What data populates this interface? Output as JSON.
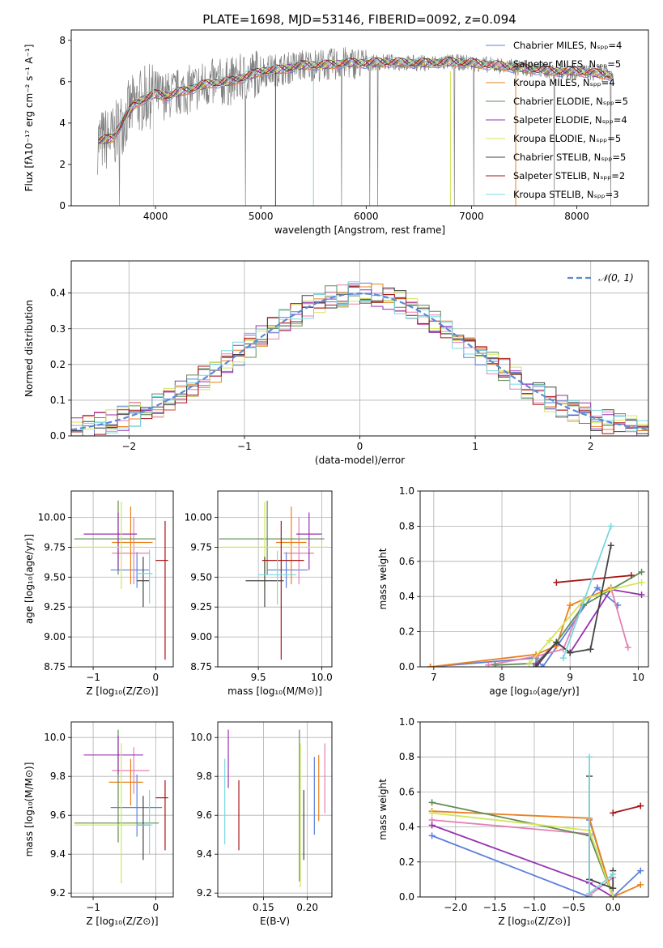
{
  "figure_title": "PLATE=1698, MJD=53146, FIBERID=0092, z=0.094",
  "colors": {
    "chabrier_miles": "#5b7fdc",
    "salpeter_miles": "#e57fb4",
    "kroupa_miles": "#e9801f",
    "chabrier_elodie": "#5f8c56",
    "salpeter_elodie": "#9630b2",
    "kroupa_elodie": "#d2e65a",
    "chabrier_stelib": "#444444",
    "salpeter_stelib": "#a81616",
    "kroupa_stelib": "#78d8de",
    "data": "#808080",
    "normal": "#5b8ad6",
    "grid": "#b0b0b0"
  },
  "chart_data": [
    {
      "id": "spectrum",
      "type": "line",
      "xlabel": "wavelength [Angstrom, rest frame]",
      "ylabel": "Flux [fλ10⁻¹⁷ erg cm⁻² s⁻¹ A⁻¹]",
      "xlim": [
        3200,
        8680
      ],
      "ylim": [
        0,
        8.5
      ],
      "xticks": [
        "4000",
        "5000",
        "6000",
        "7000",
        "8000"
      ],
      "yticks": [
        "0",
        "2",
        "4",
        "6",
        "8"
      ],
      "legend": [
        "Chabrier MILES, Nₛₚₚ=4",
        "Salpeter MILES, Nₛₚₚ=5",
        "Kroupa MILES, Nₛₚₚ=4",
        "Chabrier ELODIE, Nₛₚₚ=5",
        "Salpeter ELODIE, Nₛₚₚ=4",
        "Kroupa ELODIE, Nₛₚₚ=5",
        "Chabrier STELIB, Nₛₚₚ=5",
        "Salpeter STELIB, Nₛₚₚ=2",
        "Kroupa STELIB, Nₛₚₚ=3"
      ],
      "legend_loc": "upper right",
      "continuum": {
        "x": [
          3450,
          3600,
          3700,
          3800,
          3900,
          4000,
          4100,
          4300,
          4500,
          4700,
          4900,
          5000,
          5200,
          5400,
          5600,
          5800,
          6000,
          6200,
          6400,
          6600,
          6800,
          7000,
          7200,
          7400,
          7600,
          7800,
          8000,
          8200,
          8350
        ],
        "y": [
          3.1,
          3.3,
          4.2,
          4.9,
          5.2,
          5.4,
          5.3,
          5.6,
          5.9,
          6.0,
          6.3,
          6.5,
          6.6,
          6.8,
          6.8,
          6.9,
          6.9,
          6.95,
          6.9,
          6.9,
          6.95,
          6.9,
          6.8,
          6.7,
          6.6,
          6.5,
          6.5,
          6.4,
          6.3
        ]
      },
      "grid": false
    },
    {
      "id": "residuals",
      "type": "bar",
      "xlabel": "(data-model)/error",
      "ylabel": "Normed distribution",
      "xlim": [
        -2.5,
        2.5
      ],
      "ylim": [
        0,
        0.49
      ],
      "xticks": [
        "−2",
        "−1",
        "0",
        "1",
        "2"
      ],
      "yticks": [
        "0.0",
        "0.1",
        "0.2",
        "0.3",
        "0.4"
      ],
      "legend": [
        "𝒩(0, 1)"
      ],
      "legend_loc": "upper right",
      "grid": true,
      "bin_width": 0.1
    },
    {
      "id": "age-vs-z",
      "type": "scatter",
      "xlabel": "Z [log₁₀(Z/Z⊙)]",
      "ylabel": "age  [log₁₀(age/yr)]",
      "xlim": [
        -1.35,
        0.28
      ],
      "ylim": [
        8.75,
        10.22
      ],
      "xticks": [
        "−1",
        "0"
      ],
      "yticks": [
        "8.75",
        "9.00",
        "9.25",
        "9.50",
        "9.75",
        "10.00"
      ],
      "grid": true,
      "points": [
        {
          "series": "chabrier_miles",
          "x": -0.3,
          "xerr": [
            0.42,
            0.2
          ],
          "y": 9.56,
          "yerr": [
            0.15,
            0.15
          ]
        },
        {
          "series": "salpeter_miles",
          "x": -0.35,
          "xerr": [
            0.35,
            0.25
          ],
          "y": 9.7,
          "yerr": [
            0.26,
            0.3
          ]
        },
        {
          "series": "kroupa_miles",
          "x": -0.4,
          "xerr": [
            0.3,
            0.35
          ],
          "y": 9.79,
          "yerr": [
            0.35,
            0.3
          ]
        },
        {
          "series": "chabrier_elodie",
          "x": -0.6,
          "xerr": [
            0.7,
            0.6
          ],
          "y": 9.82,
          "yerr": [
            0.3,
            0.32
          ]
        },
        {
          "series": "salpeter_elodie",
          "x": -0.6,
          "xerr": [
            0.55,
            0.3
          ],
          "y": 9.86,
          "yerr": [
            0.3,
            0.18
          ]
        },
        {
          "series": "kroupa_elodie",
          "x": -0.55,
          "xerr": [
            0.75,
            0.35
          ],
          "y": 9.75,
          "yerr": [
            0.35,
            0.38
          ]
        },
        {
          "series": "chabrier_stelib",
          "x": -0.2,
          "xerr": [
            0.1,
            0.1
          ],
          "y": 9.47,
          "yerr": [
            0.22,
            0.2
          ]
        },
        {
          "series": "salpeter_stelib",
          "x": 0.15,
          "xerr": [
            0.15,
            0.05
          ],
          "y": 9.64,
          "yerr": [
            0.83,
            0.33
          ]
        },
        {
          "series": "kroupa_stelib",
          "x": -0.1,
          "xerr": [
            0.2,
            0.05
          ],
          "y": 9.53,
          "yerr": [
            0.25,
            0.2
          ]
        }
      ]
    },
    {
      "id": "age-vs-mass",
      "type": "scatter",
      "xlabel": "mass [log₁₀(M/M⊙)]",
      "ylabel": "",
      "xlim": [
        9.18,
        10.08
      ],
      "ylim": [
        8.75,
        10.22
      ],
      "xticks": [
        "9.5",
        "10.0"
      ],
      "yticks": [
        "8.75",
        "9.00",
        "9.25",
        "9.50",
        "9.75",
        "10.00"
      ],
      "grid": true,
      "points": [
        {
          "series": "chabrier_miles",
          "x": 9.72,
          "xerr": [
            0.15,
            0.17
          ],
          "y": 9.56,
          "yerr": [
            0.15,
            0.15
          ]
        },
        {
          "series": "salpeter_miles",
          "x": 9.82,
          "xerr": [
            0.12,
            0.12
          ],
          "y": 9.7,
          "yerr": [
            0.26,
            0.3
          ]
        },
        {
          "series": "kroupa_miles",
          "x": 9.76,
          "xerr": [
            0.12,
            0.12
          ],
          "y": 9.79,
          "yerr": [
            0.35,
            0.3
          ]
        },
        {
          "series": "chabrier_elodie",
          "x": 9.57,
          "xerr": [
            0.38,
            0.45
          ],
          "y": 9.82,
          "yerr": [
            0.3,
            0.32
          ]
        },
        {
          "series": "salpeter_elodie",
          "x": 9.9,
          "xerr": [
            0.1,
            0.1
          ],
          "y": 9.86,
          "yerr": [
            0.3,
            0.18
          ]
        },
        {
          "series": "kroupa_elodie",
          "x": 9.55,
          "xerr": [
            0.35,
            0.5
          ],
          "y": 9.75,
          "yerr": [
            0.35,
            0.38
          ]
        },
        {
          "series": "chabrier_stelib",
          "x": 9.55,
          "xerr": [
            0.15,
            0.15
          ],
          "y": 9.47,
          "yerr": [
            0.22,
            0.2
          ]
        },
        {
          "series": "salpeter_stelib",
          "x": 9.68,
          "xerr": [
            0.15,
            0.18
          ],
          "y": 9.64,
          "yerr": [
            0.83,
            0.33
          ]
        },
        {
          "series": "kroupa_stelib",
          "x": 9.65,
          "xerr": [
            0.15,
            0.15
          ],
          "y": 9.52,
          "yerr": [
            0.25,
            0.2
          ]
        }
      ]
    },
    {
      "id": "weight-vs-age",
      "type": "line",
      "xlabel": "age  [log₁₀(age/yr)]",
      "ylabel": "mass weight",
      "xlim": [
        6.8,
        10.15
      ],
      "ylim": [
        0,
        1.0
      ],
      "xticks": [
        "7",
        "8",
        "9",
        "10"
      ],
      "yticks": [
        "0.0",
        "0.2",
        "0.4",
        "0.6",
        "0.8",
        "1.0"
      ],
      "grid": true,
      "series": [
        {
          "key": "chabrier_miles",
          "x": [
            6.95,
            8.5,
            8.6,
            9.4,
            9.7
          ],
          "y": [
            0.0,
            0.05,
            0.0,
            0.45,
            0.35
          ]
        },
        {
          "key": "salpeter_miles",
          "x": [
            7.8,
            8.5,
            8.9,
            9.2,
            9.6,
            9.85
          ],
          "y": [
            0.01,
            0.06,
            0.1,
            0.38,
            0.45,
            0.11
          ]
        },
        {
          "key": "kroupa_miles",
          "x": [
            6.95,
            8.5,
            8.8,
            9.0,
            9.6
          ],
          "y": [
            0.0,
            0.07,
            0.12,
            0.35,
            0.45
          ]
        },
        {
          "key": "chabrier_elodie",
          "x": [
            7.9,
            8.5,
            8.8,
            9.2,
            10.05
          ],
          "y": [
            0.01,
            0.02,
            0.14,
            0.35,
            0.54
          ]
        },
        {
          "key": "salpeter_elodie",
          "x": [
            8.5,
            8.8,
            9.0,
            9.6,
            10.05
          ],
          "y": [
            0.01,
            0.14,
            0.08,
            0.44,
            0.41
          ]
        },
        {
          "key": "kroupa_elodie",
          "x": [
            8.4,
            8.7,
            9.2,
            9.6,
            10.05
          ],
          "y": [
            0.02,
            0.15,
            0.38,
            0.44,
            0.48
          ]
        },
        {
          "key": "chabrier_stelib",
          "x": [
            8.5,
            8.8,
            9.0,
            9.3,
            9.6
          ],
          "y": [
            0.0,
            0.14,
            0.08,
            0.1,
            0.69
          ]
        },
        {
          "key": "salpeter_stelib",
          "x": [
            8.8,
            9.9
          ],
          "y": [
            0.48,
            0.52
          ]
        },
        {
          "key": "kroupa_stelib",
          "x": [
            8.9,
            9.6
          ],
          "y": [
            0.05,
            0.8
          ]
        }
      ]
    },
    {
      "id": "mass-vs-z",
      "type": "scatter",
      "xlabel": "Z [log₁₀(Z/Z⊙)]",
      "ylabel": "mass [log₁₀(M/M⊙)]",
      "xlim": [
        -1.35,
        0.28
      ],
      "ylim": [
        9.18,
        10.08
      ],
      "xticks": [
        "−1",
        "0"
      ],
      "yticks": [
        "9.2",
        "9.4",
        "9.6",
        "9.8",
        "10.0"
      ],
      "grid": true,
      "points": [
        {
          "series": "chabrier_miles",
          "x": -0.3,
          "xerr": [
            0.42,
            0.4
          ],
          "y": 9.64,
          "yerr": [
            0.15,
            0.17
          ]
        },
        {
          "series": "salpeter_miles",
          "x": -0.35,
          "xerr": [
            0.35,
            0.25
          ],
          "y": 9.83,
          "yerr": [
            0.12,
            0.12
          ]
        },
        {
          "series": "kroupa_miles",
          "x": -0.4,
          "xerr": [
            0.35,
            0.2
          ],
          "y": 9.77,
          "yerr": [
            0.12,
            0.12
          ]
        },
        {
          "series": "chabrier_elodie",
          "x": -0.6,
          "xerr": [
            0.7,
            0.65
          ],
          "y": 9.56,
          "yerr": [
            0.1,
            0.48
          ]
        },
        {
          "series": "salpeter_elodie",
          "x": -0.6,
          "xerr": [
            0.55,
            0.4
          ],
          "y": 9.91,
          "yerr": [
            0.1,
            0.1
          ]
        },
        {
          "series": "kroupa_elodie",
          "x": -0.55,
          "xerr": [
            0.75,
            0.35
          ],
          "y": 9.55,
          "yerr": [
            0.3,
            0.42
          ]
        },
        {
          "series": "chabrier_stelib",
          "x": -0.2,
          "xerr": [
            0.1,
            0.1
          ],
          "y": 9.55,
          "yerr": [
            0.18,
            0.15
          ]
        },
        {
          "series": "salpeter_stelib",
          "x": 0.15,
          "xerr": [
            0.15,
            0.05
          ],
          "y": 9.69,
          "yerr": [
            0.27,
            0.09
          ]
        },
        {
          "series": "kroupa_stelib",
          "x": -0.1,
          "xerr": [
            0.2,
            0.05
          ],
          "y": 9.55,
          "yerr": [
            0.15,
            0.18
          ]
        }
      ]
    },
    {
      "id": "mass-vs-ebv",
      "type": "scatter",
      "xlabel": "E(B-V)",
      "ylabel": "",
      "xlim": [
        0.098,
        0.228
      ],
      "ylim": [
        9.18,
        10.08
      ],
      "xticks": [
        "0.15",
        "0.20"
      ],
      "yticks": [
        "9.2",
        "9.4",
        "9.6",
        "9.8",
        "10.0"
      ],
      "grid": true,
      "points": [
        {
          "series": "kroupa_stelib",
          "x": 0.106,
          "y": 9.67,
          "yerr": [
            0.22,
            0.22
          ]
        },
        {
          "series": "salpeter_elodie",
          "x": 0.11,
          "y": 9.89,
          "yerr": [
            0.15,
            0.15
          ]
        },
        {
          "series": "salpeter_stelib",
          "x": 0.122,
          "y": 9.6,
          "yerr": [
            0.18,
            0.18
          ]
        },
        {
          "series": "chabrier_elodie",
          "x": 0.191,
          "y": 9.65,
          "yerr": [
            0.39,
            0.39
          ]
        },
        {
          "series": "kroupa_elodie",
          "x": 0.192,
          "y": 9.6,
          "yerr": [
            0.37,
            0.37
          ]
        },
        {
          "series": "chabrier_stelib",
          "x": 0.196,
          "y": 9.55,
          "yerr": [
            0.18,
            0.18
          ]
        },
        {
          "series": "chabrier_miles",
          "x": 0.208,
          "y": 9.7,
          "yerr": [
            0.2,
            0.2
          ]
        },
        {
          "series": "kroupa_miles",
          "x": 0.213,
          "y": 9.74,
          "yerr": [
            0.17,
            0.17
          ]
        },
        {
          "series": "salpeter_miles",
          "x": 0.22,
          "y": 9.79,
          "yerr": [
            0.18,
            0.18
          ]
        }
      ]
    },
    {
      "id": "weight-vs-z",
      "type": "line",
      "xlabel": "Z [log₁₀(Z/Z⊙)]",
      "ylabel": "mass weight",
      "xlim": [
        -2.45,
        0.45
      ],
      "ylim": [
        0,
        1.0
      ],
      "xticks": [
        "−2.0",
        "−1.5",
        "−1.0",
        "−0.5",
        "0.0"
      ],
      "yticks": [
        "0.0",
        "0.2",
        "0.4",
        "0.6",
        "0.8",
        "1.0"
      ],
      "grid": true,
      "series": [
        {
          "key": "chabrier_miles",
          "x": [
            -2.3,
            -0.3,
            -0.3,
            0.0,
            0.35
          ],
          "y": [
            0.35,
            0.0,
            0.44,
            0.0,
            0.15
          ]
        },
        {
          "key": "salpeter_miles",
          "x": [
            -2.3,
            -0.3,
            -0.3,
            0.0
          ],
          "y": [
            0.44,
            0.36,
            0.01,
            0.11
          ]
        },
        {
          "key": "kroupa_miles",
          "x": [
            -2.3,
            -0.3,
            0.0,
            0.35
          ],
          "y": [
            0.49,
            0.45,
            0.0,
            0.07
          ]
        },
        {
          "key": "chabrier_elodie",
          "x": [
            -2.3,
            -0.3,
            0.0
          ],
          "y": [
            0.54,
            0.35,
            0.0
          ]
        },
        {
          "key": "salpeter_elodie",
          "x": [
            -2.3,
            -0.3,
            0.0
          ],
          "y": [
            0.41,
            0.08,
            0.0
          ]
        },
        {
          "key": "kroupa_elodie",
          "x": [
            -2.3,
            -0.3,
            0.0
          ],
          "y": [
            0.48,
            0.38,
            0.0
          ]
        },
        {
          "key": "chabrier_stelib",
          "x": [
            -0.3,
            -0.3,
            0.0,
            0.0
          ],
          "y": [
            0.69,
            0.1,
            0.05,
            0.15
          ]
        },
        {
          "key": "salpeter_stelib",
          "x": [
            0.0,
            0.35
          ],
          "y": [
            0.48,
            0.52
          ]
        },
        {
          "key": "kroupa_stelib",
          "x": [
            -0.3,
            -0.3,
            0.0
          ],
          "y": [
            0.8,
            0.02,
            0.13
          ]
        }
      ]
    }
  ]
}
